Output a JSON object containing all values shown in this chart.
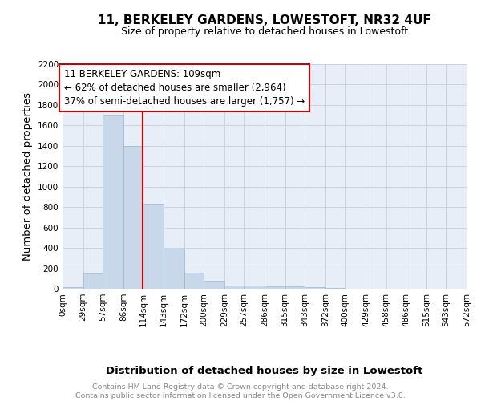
{
  "title": "11, BERKELEY GARDENS, LOWESTOFT, NR32 4UF",
  "subtitle": "Size of property relative to detached houses in Lowestoft",
  "xlabel": "Distribution of detached houses by size in Lowestoft",
  "ylabel": "Number of detached properties",
  "bin_edges": [
    0,
    29,
    57,
    86,
    114,
    143,
    172,
    200,
    229,
    257,
    286,
    315,
    343,
    372,
    400,
    429,
    458,
    486,
    515,
    543,
    572
  ],
  "bar_heights": [
    15,
    150,
    1700,
    1400,
    830,
    390,
    160,
    75,
    35,
    30,
    25,
    20,
    15,
    5,
    3,
    2,
    1,
    1,
    0,
    0
  ],
  "bar_color": "#c8d8ea",
  "bar_edgecolor": "#9ab8d0",
  "grid_color": "#c8d4e4",
  "background_color": "#e8eef8",
  "property_line_x": 114,
  "annotation_text": "11 BERKELEY GARDENS: 109sqm\n← 62% of detached houses are smaller (2,964)\n37% of semi-detached houses are larger (1,757) →",
  "annotation_box_color": "#ffffff",
  "annotation_border_color": "#cc0000",
  "ylim": [
    0,
    2200
  ],
  "yticks": [
    0,
    200,
    400,
    600,
    800,
    1000,
    1200,
    1400,
    1600,
    1800,
    2000,
    2200
  ],
  "footer_text": "Contains HM Land Registry data © Crown copyright and database right 2024.\nContains public sector information licensed under the Open Government Licence v3.0.",
  "red_line_color": "#cc0000",
  "tick_label_fontsize": 7.5,
  "axis_label_fontsize": 9.5,
  "title_fontsize": 11,
  "subtitle_fontsize": 9,
  "footer_fontsize": 6.8,
  "annot_fontsize": 8.5
}
